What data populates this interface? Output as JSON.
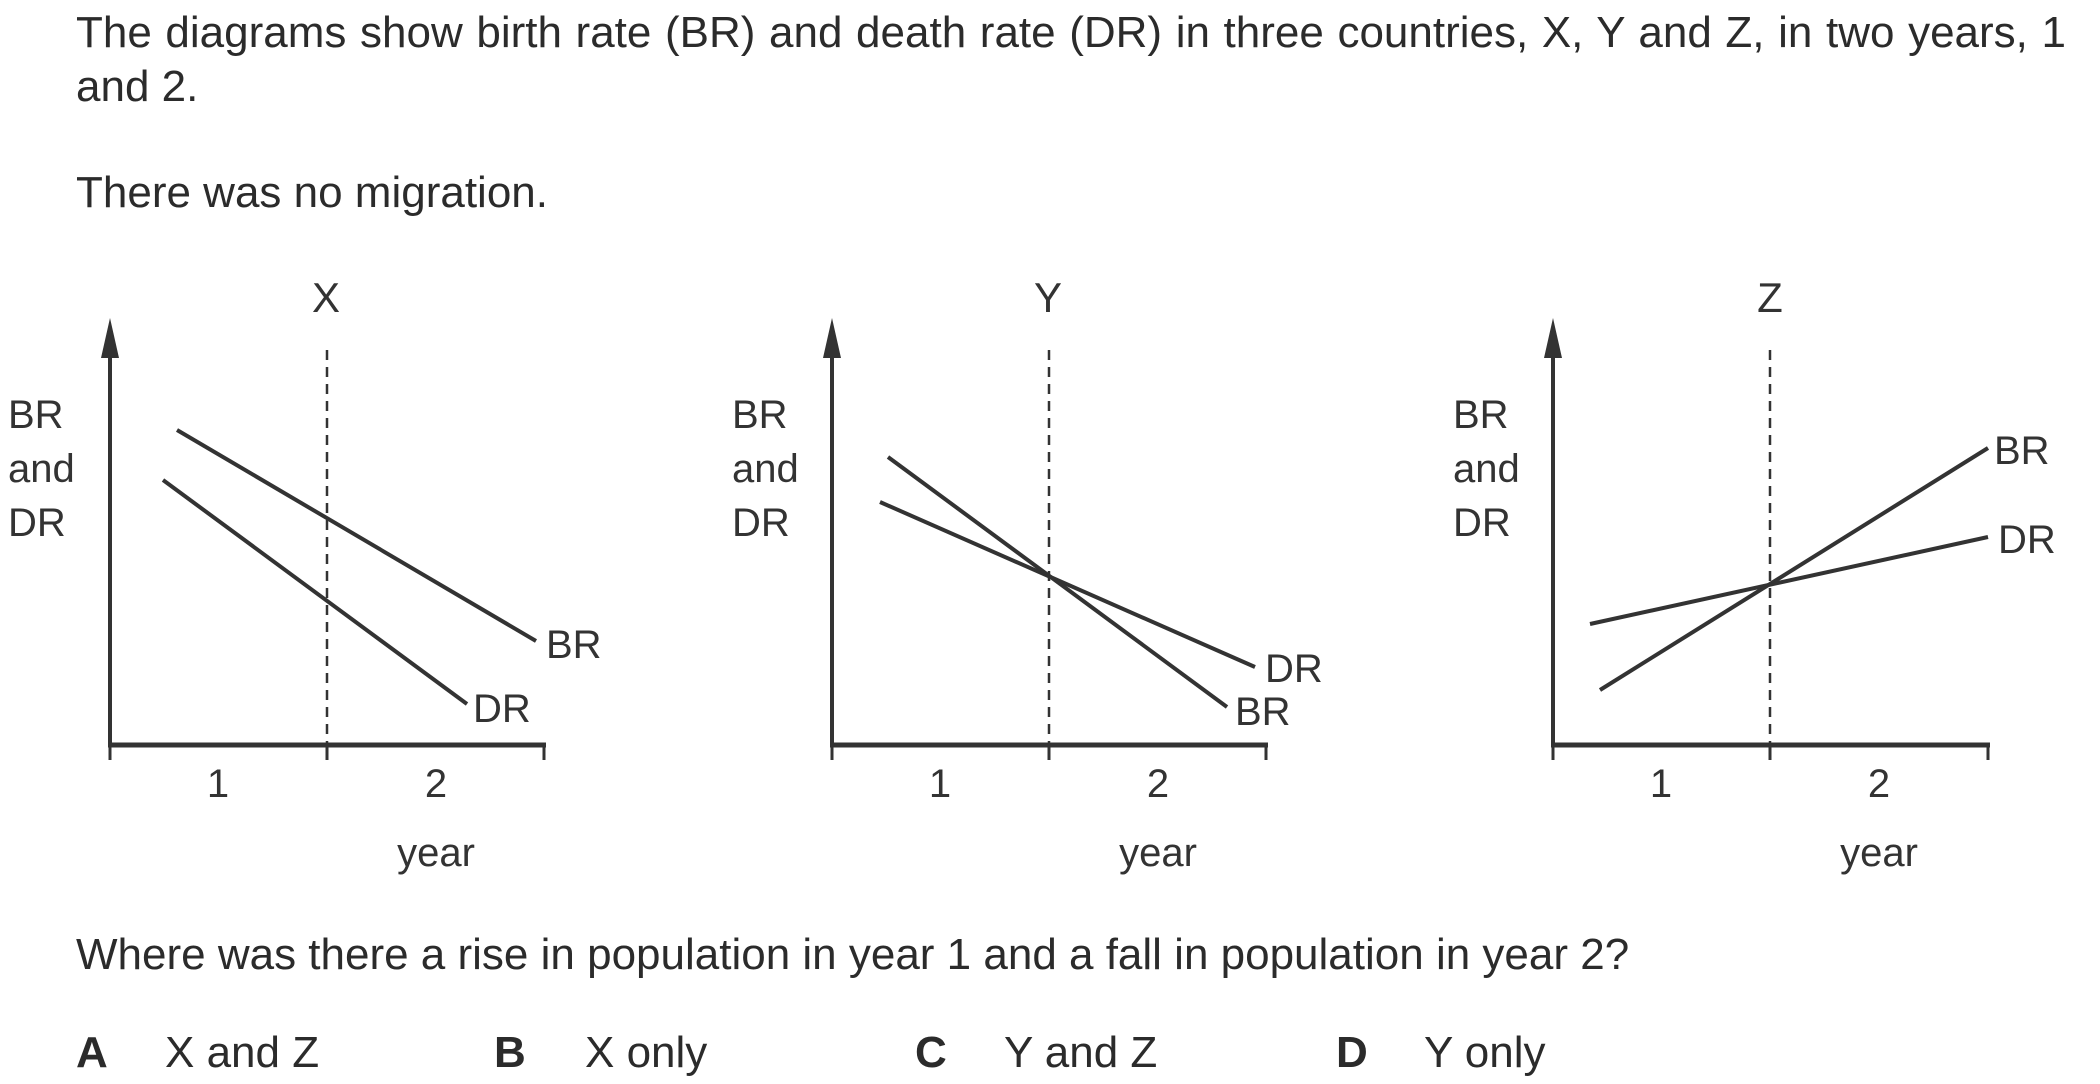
{
  "intro": "The diagrams show birth rate (BR) and death rate (DR) in three countries, X, Y and Z, in two years, 1 and 2.",
  "no_migration": "There was no migration.",
  "question": "Where was there a rise in population in year 1 and a fall in population in year 2?",
  "diagrams": [
    {
      "title": "X",
      "ylabel": [
        "BR",
        "and",
        "DR"
      ],
      "xlabel": "year",
      "ticks": [
        "1",
        "2"
      ],
      "line_labels": [
        "BR",
        "DR"
      ]
    },
    {
      "title": "Y",
      "ylabel": [
        "BR",
        "and",
        "DR"
      ],
      "xlabel": "year",
      "ticks": [
        "1",
        "2"
      ],
      "line_labels": [
        "DR",
        "BR"
      ]
    },
    {
      "title": "Z",
      "ylabel": [
        "BR",
        "and",
        "DR"
      ],
      "xlabel": "year",
      "ticks": [
        "1",
        "2"
      ],
      "line_labels": [
        "BR",
        "DR"
      ]
    }
  ],
  "options": [
    {
      "letter": "A",
      "text": "X and Z"
    },
    {
      "letter": "B",
      "text": "X only"
    },
    {
      "letter": "C",
      "text": "Y and Z"
    },
    {
      "letter": "D",
      "text": "Y only"
    }
  ]
}
